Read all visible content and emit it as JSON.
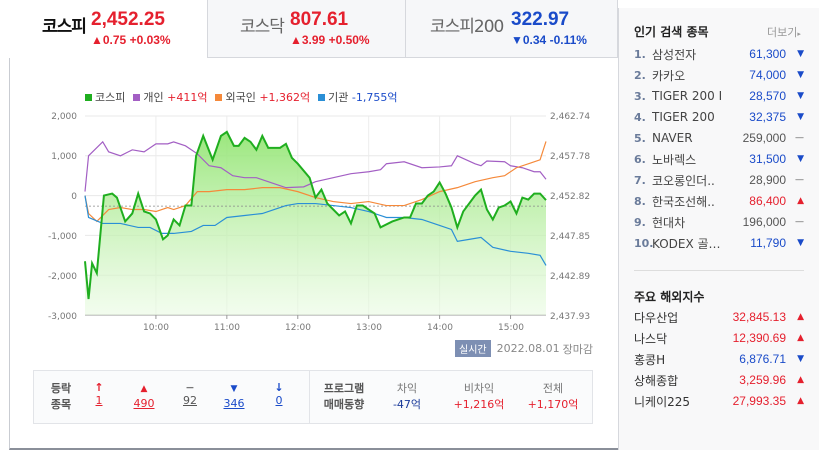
{
  "tabs": [
    {
      "name": "코스피",
      "value": "2,452.25",
      "change": "▲0.75 +0.03%",
      "dir": "up"
    },
    {
      "name": "코스닥",
      "value": "807.61",
      "change": "▲3.99 +0.50%",
      "dir": "up"
    },
    {
      "name": "코스피200",
      "value": "322.97",
      "change": "▼0.34 -0.11%",
      "dir": "dn"
    }
  ],
  "legend": [
    {
      "label": "코스피",
      "value": "",
      "color": "#1fae1f"
    },
    {
      "label": "개인",
      "value": "+411억",
      "color": "#a35fc4"
    },
    {
      "label": "외국인",
      "value": "+1,362억",
      "color": "#f5893a"
    },
    {
      "label": "기관",
      "value": "-1,755억",
      "color": "#2a8fd6"
    }
  ],
  "chart_data": {
    "type": "line",
    "x_ticks": [
      "10:00",
      "11:00",
      "12:00",
      "13:00",
      "14:00",
      "15:00"
    ],
    "left_ticks": [
      "2,000",
      "1,000",
      "0",
      "-1,000",
      "-2,000",
      "-3,000"
    ],
    "right_ticks": [
      "2,462.74",
      "2,457.78",
      "2,452.82",
      "2,447.85",
      "2,442.89",
      "2,437.93"
    ],
    "left_ylim": [
      -3000,
      2000
    ],
    "right_ylim": [
      2437.93,
      2462.74
    ],
    "xlim": [
      "09:00",
      "15:30"
    ],
    "prev_close": 2451.5,
    "grid": true,
    "legend_position": "top-left",
    "kospi": {
      "axis": "right",
      "points": [
        [
          "09:00",
          2444.63
        ],
        [
          "09:03",
          2439.92
        ],
        [
          "09:06",
          2444.38
        ],
        [
          "09:10",
          2443.14
        ],
        [
          "09:16",
          2452.82
        ],
        [
          "09:23",
          2453.07
        ],
        [
          "09:27",
          2452.57
        ],
        [
          "09:34",
          2449.59
        ],
        [
          "09:40",
          2450.59
        ],
        [
          "09:45",
          2453.07
        ],
        [
          "09:50",
          2450.84
        ],
        [
          "09:55",
          2450.59
        ],
        [
          "10:00",
          2449.84
        ],
        [
          "10:06",
          2447.36
        ],
        [
          "10:10",
          2447.86
        ],
        [
          "10:15",
          2449.84
        ],
        [
          "10:20",
          2449.1
        ],
        [
          "10:25",
          2451.58
        ],
        [
          "10:30",
          2451.58
        ],
        [
          "10:34",
          2457.78
        ],
        [
          "10:40",
          2460.26
        ],
        [
          "10:48",
          2457.29
        ],
        [
          "10:55",
          2460.26
        ],
        [
          "11:00",
          2460.76
        ],
        [
          "11:06",
          2459.02
        ],
        [
          "11:10",
          2459.02
        ],
        [
          "11:15",
          2460.01
        ],
        [
          "11:20",
          2459.52
        ],
        [
          "11:25",
          2458.53
        ],
        [
          "11:30",
          2460.26
        ],
        [
          "11:35",
          2458.77
        ],
        [
          "11:45",
          2458.77
        ],
        [
          "11:50",
          2459.27
        ],
        [
          "11:55",
          2457.53
        ],
        [
          "12:00",
          2456.79
        ],
        [
          "12:10",
          2455.05
        ],
        [
          "12:15",
          2452.57
        ],
        [
          "12:20",
          2453.56
        ],
        [
          "12:25",
          2451.83
        ],
        [
          "12:35",
          2450.34
        ],
        [
          "12:40",
          2450.84
        ],
        [
          "12:45",
          2449.35
        ],
        [
          "12:50",
          2451.58
        ],
        [
          "12:55",
          2451.58
        ],
        [
          "13:00",
          2451.08
        ],
        [
          "13:05",
          2450.59
        ],
        [
          "13:10",
          2448.85
        ],
        [
          "13:20",
          2449.59
        ],
        [
          "13:30",
          2450.09
        ],
        [
          "13:35",
          2450.09
        ],
        [
          "13:40",
          2451.83
        ],
        [
          "13:45",
          2451.83
        ],
        [
          "13:50",
          2452.82
        ],
        [
          "13:55",
          2453.32
        ],
        [
          "14:00",
          2454.46
        ],
        [
          "14:05",
          2453.07
        ],
        [
          "14:10",
          2451.33
        ],
        [
          "14:15",
          2448.85
        ],
        [
          "14:20",
          2450.84
        ],
        [
          "14:30",
          2452.82
        ],
        [
          "14:35",
          2453.56
        ],
        [
          "14:40",
          2451.08
        ],
        [
          "14:45",
          2449.84
        ],
        [
          "14:50",
          2451.33
        ],
        [
          "14:55",
          2451.58
        ],
        [
          "15:00",
          2452.08
        ],
        [
          "15:05",
          2450.59
        ],
        [
          "15:10",
          2452.57
        ],
        [
          "15:15",
          2452.32
        ],
        [
          "15:20",
          2453.07
        ],
        [
          "15:25",
          2453.07
        ],
        [
          "15:30",
          2452.25
        ]
      ]
    },
    "series": [
      {
        "name": "개인",
        "color": "#a35fc4",
        "axis": "left",
        "points": [
          [
            "09:00",
            100
          ],
          [
            "09:03",
            1000
          ],
          [
            "09:15",
            1350
          ],
          [
            "09:20",
            1100
          ],
          [
            "09:30",
            1000
          ],
          [
            "09:40",
            1150
          ],
          [
            "09:50",
            1100
          ],
          [
            "10:00",
            1300
          ],
          [
            "10:10",
            1300
          ],
          [
            "10:15",
            1350
          ],
          [
            "10:25",
            1250
          ],
          [
            "10:35",
            1050
          ],
          [
            "10:45",
            750
          ],
          [
            "10:55",
            700
          ],
          [
            "11:05",
            500
          ],
          [
            "11:15",
            450
          ],
          [
            "11:25",
            450
          ],
          [
            "11:35",
            350
          ],
          [
            "11:45",
            250
          ],
          [
            "11:50",
            200
          ],
          [
            "12:05",
            220
          ],
          [
            "12:15",
            350
          ],
          [
            "12:30",
            450
          ],
          [
            "12:45",
            550
          ],
          [
            "13:00",
            600
          ],
          [
            "13:10",
            650
          ],
          [
            "13:15",
            800
          ],
          [
            "13:30",
            850
          ],
          [
            "13:45",
            700
          ],
          [
            "14:00",
            720
          ],
          [
            "14:10",
            750
          ],
          [
            "14:15",
            1000
          ],
          [
            "14:30",
            800
          ],
          [
            "14:35",
            750
          ],
          [
            "14:40",
            870
          ],
          [
            "14:55",
            850
          ],
          [
            "15:00",
            750
          ],
          [
            "15:10",
            700
          ],
          [
            "15:20",
            600
          ],
          [
            "15:25",
            600
          ],
          [
            "15:30",
            411
          ]
        ]
      },
      {
        "name": "외국인",
        "color": "#f5893a",
        "axis": "left",
        "points": [
          [
            "09:00",
            0
          ],
          [
            "09:03",
            -450
          ],
          [
            "09:10",
            -650
          ],
          [
            "09:20",
            -350
          ],
          [
            "09:30",
            -300
          ],
          [
            "09:40",
            -350
          ],
          [
            "09:50",
            -350
          ],
          [
            "10:00",
            -400
          ],
          [
            "10:10",
            -300
          ],
          [
            "10:15",
            -350
          ],
          [
            "10:25",
            -250
          ],
          [
            "10:35",
            100
          ],
          [
            "10:45",
            100
          ],
          [
            "11:00",
            150
          ],
          [
            "11:15",
            150
          ],
          [
            "11:30",
            200
          ],
          [
            "11:45",
            200
          ],
          [
            "12:00",
            100
          ],
          [
            "12:15",
            -50
          ],
          [
            "12:30",
            -150
          ],
          [
            "12:45",
            -200
          ],
          [
            "13:00",
            -150
          ],
          [
            "13:15",
            -250
          ],
          [
            "13:30",
            -250
          ],
          [
            "13:45",
            -100
          ],
          [
            "14:00",
            100
          ],
          [
            "14:15",
            200
          ],
          [
            "14:30",
            350
          ],
          [
            "14:45",
            450
          ],
          [
            "14:55",
            500
          ],
          [
            "15:05",
            700
          ],
          [
            "15:15",
            800
          ],
          [
            "15:25",
            900
          ],
          [
            "15:30",
            1362
          ]
        ]
      },
      {
        "name": "기관",
        "color": "#2a8fd6",
        "axis": "left",
        "points": [
          [
            "09:00",
            0
          ],
          [
            "09:03",
            -550
          ],
          [
            "09:15",
            -700
          ],
          [
            "09:30",
            -700
          ],
          [
            "09:45",
            -800
          ],
          [
            "09:55",
            -800
          ],
          [
            "10:05",
            -950
          ],
          [
            "10:15",
            -950
          ],
          [
            "10:30",
            -900
          ],
          [
            "10:40",
            -750
          ],
          [
            "10:50",
            -750
          ],
          [
            "11:00",
            -550
          ],
          [
            "11:15",
            -500
          ],
          [
            "11:30",
            -450
          ],
          [
            "11:40",
            -350
          ],
          [
            "11:50",
            -250
          ],
          [
            "12:00",
            -200
          ],
          [
            "12:15",
            -200
          ],
          [
            "12:30",
            -250
          ],
          [
            "12:45",
            -300
          ],
          [
            "13:00",
            -400
          ],
          [
            "13:15",
            -550
          ],
          [
            "13:30",
            -550
          ],
          [
            "13:45",
            -600
          ],
          [
            "14:00",
            -750
          ],
          [
            "14:10",
            -850
          ],
          [
            "14:15",
            -1150
          ],
          [
            "14:25",
            -1100
          ],
          [
            "14:35",
            -1050
          ],
          [
            "14:45",
            -1300
          ],
          [
            "15:00",
            -1400
          ],
          [
            "15:15",
            -1450
          ],
          [
            "15:25",
            -1500
          ],
          [
            "15:30",
            -1755
          ]
        ]
      }
    ]
  },
  "meta": {
    "badge": "실시간",
    "date": "2022.08.01",
    "status": "장마감"
  },
  "breadth": {
    "label1": "등락",
    "label2": "종목",
    "items": [
      {
        "icon": "↑",
        "count": "1",
        "color": "#e5202e"
      },
      {
        "icon": "▲",
        "count": "490",
        "color": "#e5202e"
      },
      {
        "icon": "−",
        "count": "92",
        "color": "#555"
      },
      {
        "icon": "▼",
        "count": "346",
        "color": "#1a4bc9"
      },
      {
        "icon": "↓",
        "count": "0",
        "color": "#1a4bc9"
      }
    ]
  },
  "program": {
    "label1": "프로그램",
    "label2": "매매동향",
    "cols": [
      {
        "head": "차익",
        "value": "-47억",
        "color": "#1a3a9a"
      },
      {
        "head": "비차익",
        "value": "+1,216억",
        "color": "#e5202e"
      },
      {
        "head": "전체",
        "value": "+1,170억",
        "color": "#e5202e"
      }
    ]
  },
  "popular": {
    "title": "인기 검색 종목",
    "more": "더보기",
    "items": [
      {
        "rank": "1.",
        "name": "삼성전자",
        "price": "61,300",
        "dir": "dn"
      },
      {
        "rank": "2.",
        "name": "카카오",
        "price": "74,000",
        "dir": "dn"
      },
      {
        "rank": "3.",
        "name": "TIGER 200 I..",
        "price": "28,570",
        "dir": "dn"
      },
      {
        "rank": "4.",
        "name": "TIGER 200",
        "price": "32,375",
        "dir": "dn"
      },
      {
        "rank": "5.",
        "name": "NAVER",
        "price": "259,000",
        "dir": "flat"
      },
      {
        "rank": "6.",
        "name": "노바렉스",
        "price": "31,500",
        "dir": "dn"
      },
      {
        "rank": "7.",
        "name": "코오롱인더..",
        "price": "28,900",
        "dir": "flat"
      },
      {
        "rank": "8.",
        "name": "한국조선해..",
        "price": "86,400",
        "dir": "up"
      },
      {
        "rank": "9.",
        "name": "현대차",
        "price": "196,000",
        "dir": "flat"
      },
      {
        "rank": "10.",
        "name": "KODEX 골…",
        "price": "11,790",
        "dir": "dn"
      }
    ]
  },
  "world": {
    "title": "주요 해외지수",
    "items": [
      {
        "name": "다우산업",
        "value": "32,845.13",
        "dir": "up"
      },
      {
        "name": "나스닥",
        "value": "12,390.69",
        "dir": "up"
      },
      {
        "name": "홍콩H",
        "value": "6,876.71",
        "dir": "dn"
      },
      {
        "name": "상해종합",
        "value": "3,259.96",
        "dir": "up"
      },
      {
        "name": "니케이225",
        "value": "27,993.35",
        "dir": "up"
      }
    ]
  }
}
